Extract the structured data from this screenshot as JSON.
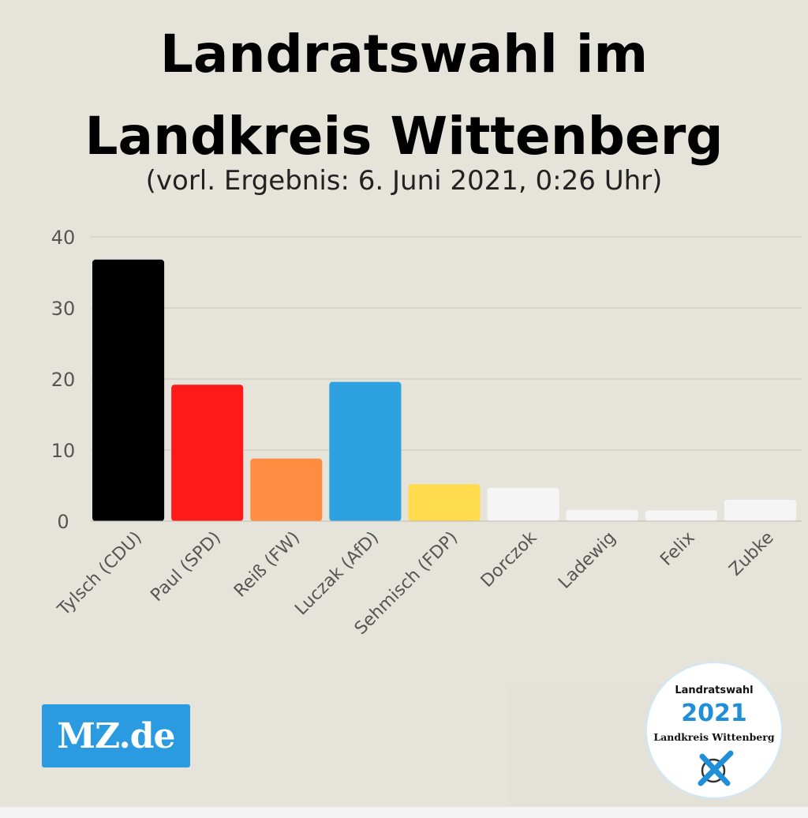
{
  "header": {
    "title_line1": "Landratswahl im",
    "title_line2": "Landkreis Wittenberg",
    "subtitle": "(vorl. Ergebnis: 6. Juni 2021, 0:26 Uhr)"
  },
  "logos": {
    "publisher": "MZ.de",
    "seal_line1": "Landratswahl",
    "seal_line2": "2021",
    "seal_line3": "Landkreis Wittenberg"
  },
  "colors": {
    "background": "#e6e4da",
    "grid": "#c9c7bd",
    "axis_text": "#555555",
    "publisher_blue": "#2a9be0"
  },
  "chart_data": {
    "type": "bar",
    "title": "",
    "xlabel": "",
    "ylabel": "",
    "ylim": [
      0,
      40
    ],
    "yticks": [
      0,
      10,
      20,
      30,
      40
    ],
    "grid": true,
    "categories": [
      "Tylsch (CDU)",
      "Paul (SPD)",
      "Reiß (FW)",
      "Luczak (AfD)",
      "Sehmisch (FDP)",
      "Dorczok",
      "Ladewig",
      "Felix",
      "Zubke"
    ],
    "values": [
      36.8,
      19.2,
      8.8,
      19.6,
      5.2,
      4.7,
      1.6,
      1.5,
      3.0
    ],
    "bar_colors": [
      "#000000",
      "#ff1a1a",
      "#ff8c40",
      "#2ea2e0",
      "#ffdb4d",
      "#f5f5f5",
      "#f5f5f5",
      "#f5f5f5",
      "#f5f5f5"
    ]
  }
}
